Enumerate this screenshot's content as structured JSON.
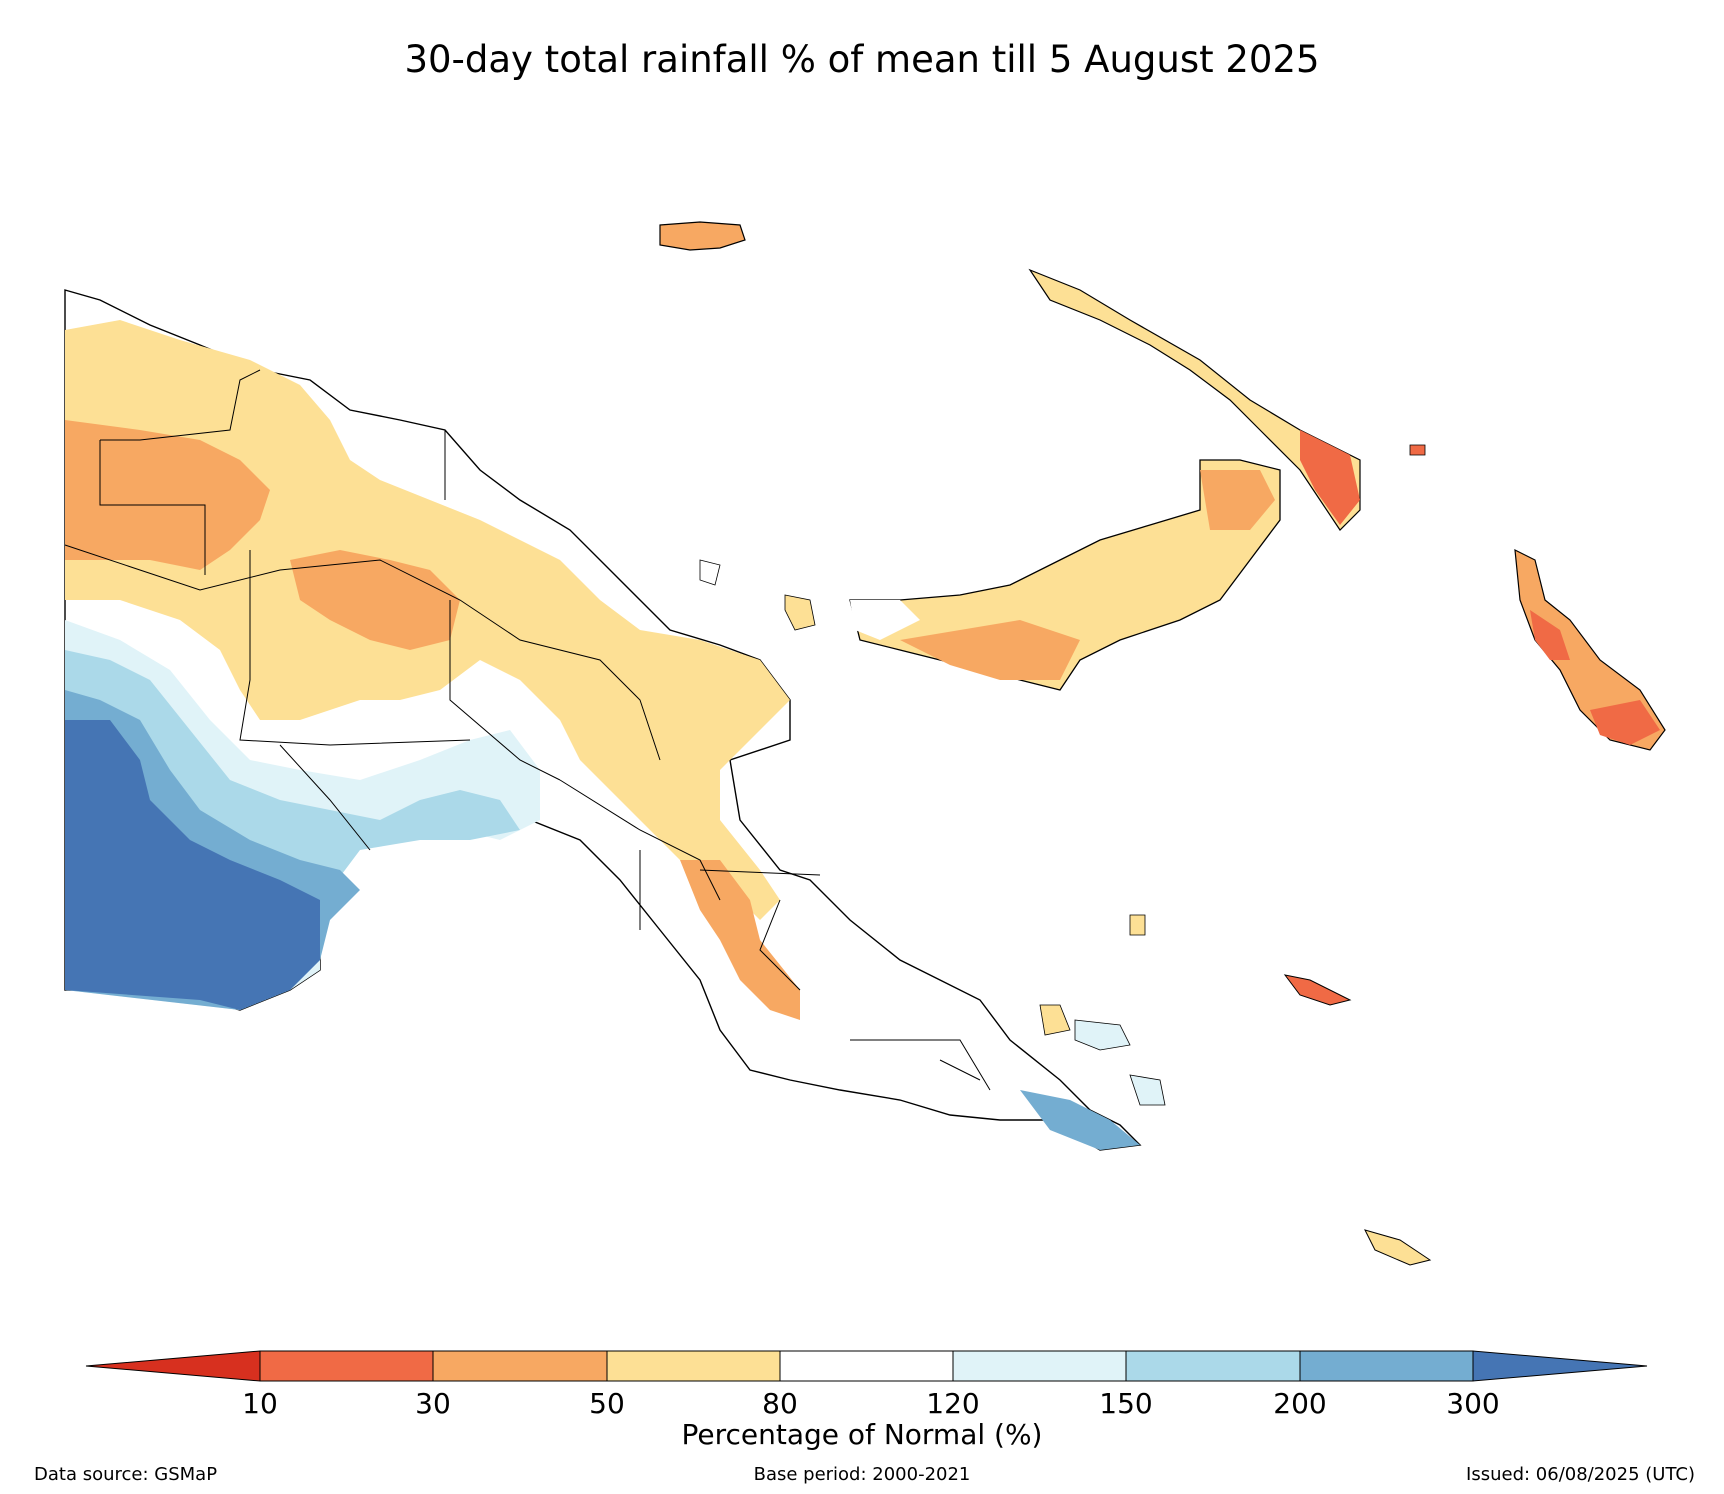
{
  "title": "30-day total rainfall % of mean till 5 August 2025",
  "legend": {
    "label": "Percentage of Normal (%)",
    "ticks": [
      "10",
      "30",
      "50",
      "80",
      "120",
      "150",
      "200",
      "300"
    ],
    "colors": {
      "below_10": "#d7301f",
      "10_30": "#f06a45",
      "30_50": "#f7a862",
      "50_80": "#fde095",
      "80_120": "#ffffff",
      "120_150": "#e0f3f8",
      "150_200": "#abd9e9",
      "200_300": "#74add1",
      "above_300": "#4575b4"
    }
  },
  "footer": {
    "source": "Data source: GSMaP",
    "base_period": "Base period: 2000-2021",
    "issued": "Issued: 06/08/2025 (UTC)"
  }
}
